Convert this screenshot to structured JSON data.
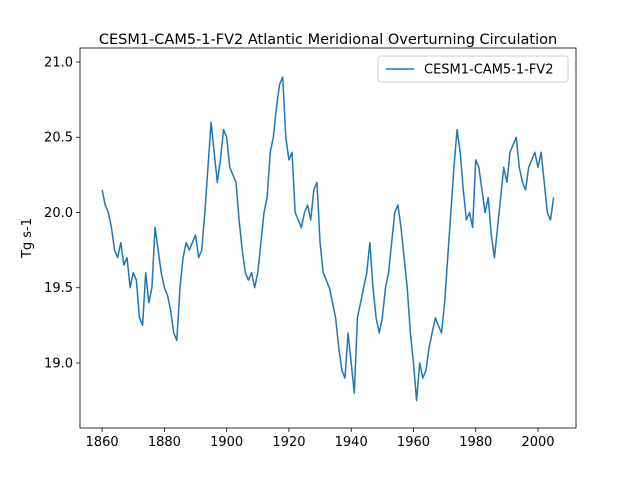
{
  "chart_data": {
    "type": "line",
    "title": "CESM1-CAM5-1-FV2 Atlantic Meridional Overturning Circulation",
    "y_label": "Tg s-1",
    "x": [
      1860,
      1861,
      1862,
      1863,
      1864,
      1865,
      1866,
      1867,
      1868,
      1869,
      1870,
      1871,
      1872,
      1873,
      1874,
      1875,
      1876,
      1877,
      1878,
      1879,
      1880,
      1881,
      1882,
      1883,
      1884,
      1885,
      1886,
      1887,
      1888,
      1889,
      1890,
      1891,
      1892,
      1893,
      1894,
      1895,
      1896,
      1897,
      1898,
      1899,
      1900,
      1901,
      1902,
      1903,
      1904,
      1905,
      1906,
      1907,
      1908,
      1909,
      1910,
      1911,
      1912,
      1913,
      1914,
      1915,
      1916,
      1917,
      1918,
      1919,
      1920,
      1921,
      1922,
      1923,
      1924,
      1925,
      1926,
      1927,
      1928,
      1929,
      1930,
      1931,
      1932,
      1933,
      1934,
      1935,
      1936,
      1937,
      1938,
      1939,
      1940,
      1941,
      1942,
      1943,
      1944,
      1945,
      1946,
      1947,
      1948,
      1949,
      1950,
      1951,
      1952,
      1953,
      1954,
      1955,
      1956,
      1957,
      1958,
      1959,
      1960,
      1961,
      1962,
      1963,
      1964,
      1965,
      1966,
      1967,
      1968,
      1969,
      1970,
      1971,
      1972,
      1973,
      1974,
      1975,
      1976,
      1977,
      1978,
      1979,
      1980,
      1981,
      1982,
      1983,
      1984,
      1985,
      1986,
      1987,
      1988,
      1989,
      1990,
      1991,
      1992,
      1993,
      1994,
      1995,
      1996,
      1997,
      1998,
      1999,
      2000,
      2001,
      2002,
      2003,
      2004,
      2005
    ],
    "series": [
      {
        "name": "CESM1-CAM5-1-FV2",
        "color": "#1f77b4",
        "values": [
          20.15,
          20.05,
          20.0,
          19.9,
          19.75,
          19.7,
          19.8,
          19.65,
          19.7,
          19.5,
          19.6,
          19.55,
          19.3,
          19.25,
          19.6,
          19.4,
          19.5,
          19.9,
          19.75,
          19.6,
          19.5,
          19.45,
          19.35,
          19.2,
          19.15,
          19.5,
          19.7,
          19.8,
          19.75,
          19.8,
          19.85,
          19.7,
          19.75,
          20.0,
          20.3,
          20.6,
          20.4,
          20.2,
          20.35,
          20.55,
          20.5,
          20.3,
          20.25,
          20.2,
          19.95,
          19.75,
          19.6,
          19.55,
          19.6,
          19.5,
          19.6,
          19.8,
          20.0,
          20.1,
          20.4,
          20.5,
          20.7,
          20.85,
          20.9,
          20.5,
          20.35,
          20.4,
          20.0,
          19.95,
          19.9,
          20.0,
          20.05,
          19.95,
          20.15,
          20.2,
          19.8,
          19.6,
          19.55,
          19.5,
          19.4,
          19.3,
          19.1,
          18.95,
          18.9,
          19.2,
          19.0,
          18.8,
          19.3,
          19.4,
          19.5,
          19.6,
          19.8,
          19.5,
          19.3,
          19.2,
          19.3,
          19.5,
          19.6,
          19.8,
          20.0,
          20.05,
          19.9,
          19.7,
          19.5,
          19.2,
          19.0,
          18.75,
          19.0,
          18.9,
          18.95,
          19.1,
          19.2,
          19.3,
          19.25,
          19.2,
          19.4,
          19.7,
          20.0,
          20.3,
          20.55,
          20.4,
          20.15,
          19.95,
          20.0,
          19.9,
          20.35,
          20.3,
          20.15,
          20.0,
          20.1,
          19.85,
          19.7,
          19.9,
          20.1,
          20.3,
          20.2,
          20.4,
          20.45,
          20.5,
          20.3,
          20.2,
          20.15,
          20.3,
          20.35,
          20.4,
          20.3,
          20.4,
          20.2,
          20.0,
          19.95,
          20.1
        ]
      }
    ],
    "xlim": [
      1852.9,
      2012.2
    ],
    "ylim": [
      18.568,
      21.093
    ],
    "xticks": [
      1860,
      1880,
      1900,
      1920,
      1940,
      1960,
      1980,
      2000
    ],
    "yticks": [
      {
        "value": 19.0,
        "label": "19.0"
      },
      {
        "value": 19.5,
        "label": "19.5"
      },
      {
        "value": 20.0,
        "label": "20.0"
      },
      {
        "value": 20.5,
        "label": "20.5"
      },
      {
        "value": 21.0,
        "label": "21.0"
      }
    ],
    "legend": "upper right"
  }
}
